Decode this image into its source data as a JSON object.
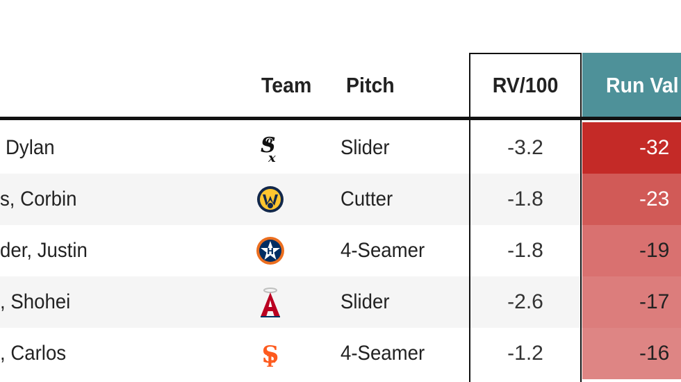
{
  "headers": {
    "team": "Team",
    "pitch": "Pitch",
    "rv100": "RV/100",
    "run_value": "Run Val"
  },
  "colors": {
    "header_accent": "#4e9199",
    "heat_strong": "#c62a27",
    "heat_light": "#e08787"
  },
  "rows": [
    {
      "name": "Dylan",
      "team_icon": "white-sox-logo-icon",
      "pitch": "Slider",
      "rv100": "-3.2",
      "run_value": "-32",
      "heat": "#c42a27",
      "text_dark": false
    },
    {
      "name": "s, Corbin",
      "team_icon": "brewers-logo-icon",
      "pitch": "Cutter",
      "rv100": "-1.8",
      "run_value": "-23",
      "heat": "#d15a57",
      "text_dark": false
    },
    {
      "name": "der, Justin",
      "team_icon": "astros-logo-icon",
      "pitch": "4-Seamer",
      "rv100": "-1.8",
      "run_value": "-19",
      "heat": "#d97170",
      "text_dark": true
    },
    {
      "name": ", Shohei",
      "team_icon": "angels-logo-icon",
      "pitch": "Slider",
      "rv100": "-2.6",
      "run_value": "-17",
      "heat": "#dc7d7c",
      "text_dark": true
    },
    {
      "name": ", Carlos",
      "team_icon": "giants-logo-icon",
      "pitch": "4-Seamer",
      "rv100": "-1.2",
      "run_value": "-16",
      "heat": "#de8584",
      "text_dark": true
    }
  ]
}
